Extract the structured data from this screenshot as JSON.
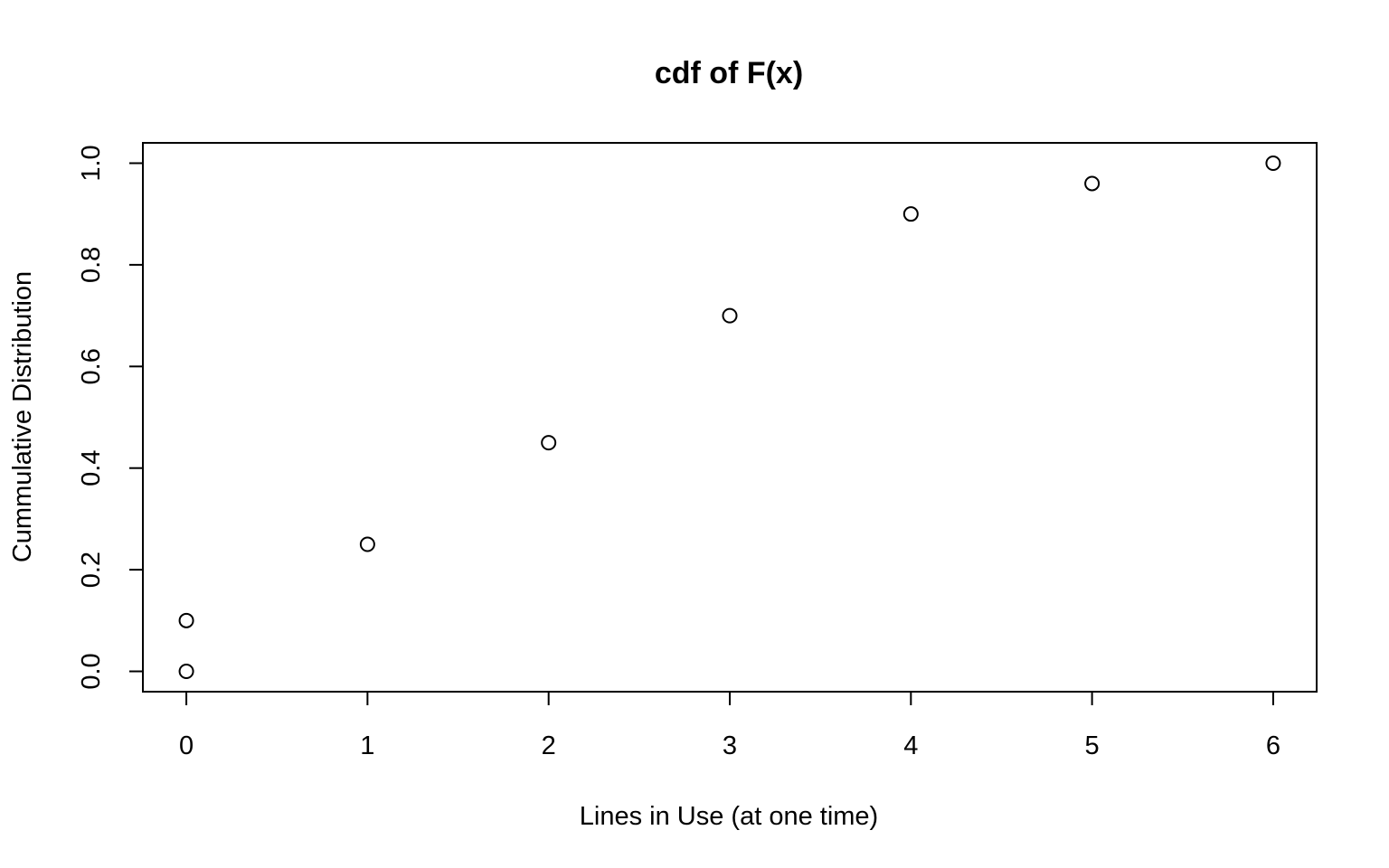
{
  "chart_data": {
    "type": "scatter",
    "title": "cdf of F(x)",
    "xlabel": "Lines in Use (at one time)",
    "ylabel": "Cummulative Distribution",
    "x": [
      0,
      0,
      1,
      2,
      3,
      4,
      5,
      6
    ],
    "y": [
      0.0,
      0.1,
      0.25,
      0.45,
      0.7,
      0.9,
      0.96,
      1.0
    ],
    "xlim": [
      -0.24,
      6.24
    ],
    "ylim": [
      -0.04,
      1.04
    ],
    "xticks": [
      0,
      1,
      2,
      3,
      4,
      5,
      6
    ],
    "xtick_labels": [
      "0",
      "1",
      "2",
      "3",
      "4",
      "5",
      "6"
    ],
    "yticks": [
      0.0,
      0.2,
      0.4,
      0.6,
      0.8,
      1.0
    ],
    "ytick_labels": [
      "0.0",
      "0.2",
      "0.4",
      "0.6",
      "0.8",
      "1.0"
    ],
    "marker": "open-circle",
    "grid": false,
    "legend": "none",
    "colors": {
      "background": "#ffffff",
      "ink": "#000000"
    }
  }
}
